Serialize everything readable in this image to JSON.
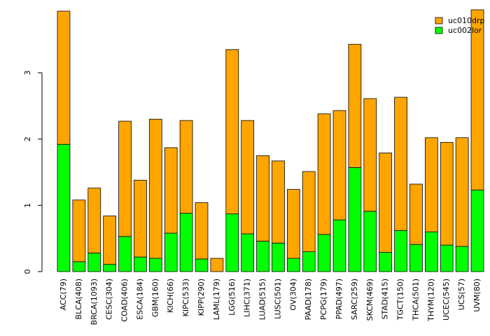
{
  "chart_data": {
    "type": "bar",
    "stacked": true,
    "title": "",
    "xlabel": "",
    "ylabel": "",
    "ylim": [
      0,
      3.95
    ],
    "yticks": [
      0,
      1,
      2,
      3
    ],
    "grid": false,
    "legend_position": "top-right",
    "categories": [
      "ACC(79)",
      "BLCA(408)",
      "BRCA(1093)",
      "CESC(304)",
      "COAD(406)",
      "ESCA(184)",
      "GBM(160)",
      "KICH(66)",
      "KIPC(533)",
      "KIPP(290)",
      "LAML(179)",
      "LGG(516)",
      "LIHC(371)",
      "LUAD(515)",
      "LUSC(501)",
      "OV(304)",
      "PAAD(178)",
      "PCPG(179)",
      "PPAD(497)",
      "SARC(259)",
      "SKCM(469)",
      "STAD(415)",
      "TGCT(150)",
      "THCA(501)",
      "THYM(120)",
      "UCEC(545)",
      "UCS(57)",
      "UVM(80)"
    ],
    "series": [
      {
        "name": "uc002lor",
        "color": "#00ff00",
        "values": [
          1.92,
          0.15,
          0.28,
          0.11,
          0.53,
          0.22,
          0.2,
          0.58,
          0.88,
          0.19,
          0.0,
          0.87,
          0.57,
          0.46,
          0.43,
          0.2,
          0.3,
          0.56,
          0.78,
          1.57,
          0.91,
          0.29,
          0.62,
          0.41,
          0.6,
          0.4,
          0.38,
          1.23
        ]
      },
      {
        "name": "uc010drp",
        "color": "#ffa500",
        "values": [
          2.01,
          0.93,
          0.98,
          0.73,
          1.74,
          1.16,
          2.1,
          1.29,
          1.4,
          0.85,
          0.2,
          2.48,
          1.71,
          1.29,
          1.24,
          1.04,
          1.21,
          1.82,
          1.65,
          1.86,
          1.7,
          1.5,
          2.01,
          0.91,
          1.42,
          1.55,
          1.64,
          2.72
        ]
      }
    ],
    "legend": [
      {
        "name": "uc010drp",
        "color": "#ffa500"
      },
      {
        "name": "uc002lor",
        "color": "#00ff00"
      }
    ]
  }
}
